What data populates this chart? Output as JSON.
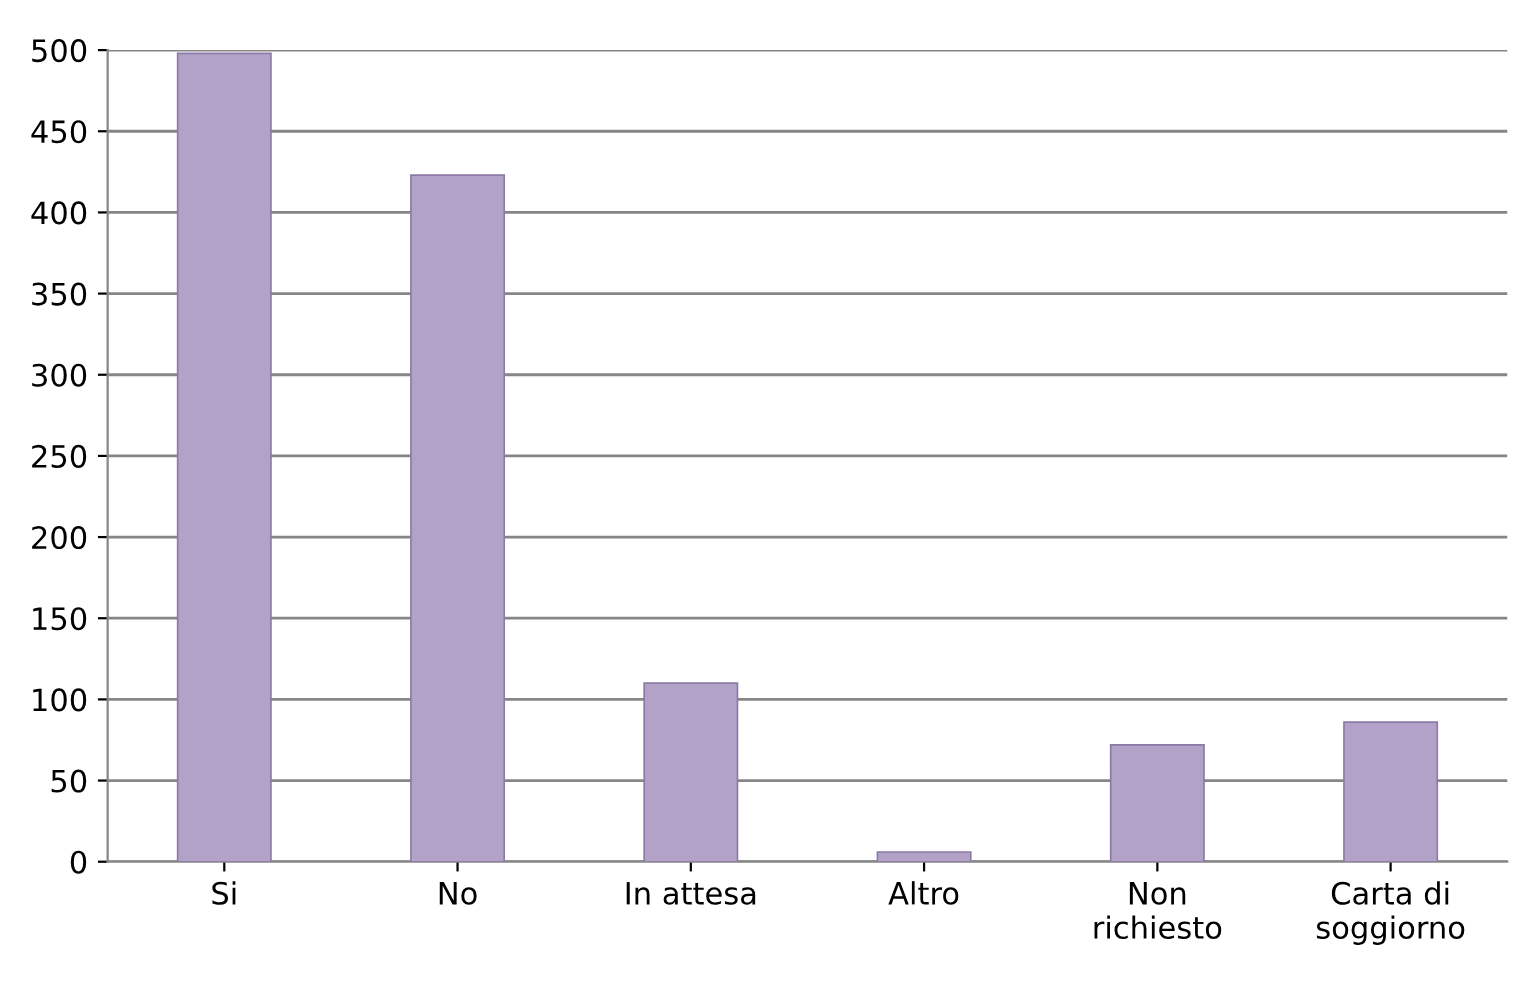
{
  "chart_data": {
    "type": "bar",
    "categories": [
      "Si",
      "No",
      "In attesa",
      "Altro",
      "Non\nrichiesto",
      "Carta di\nsoggiorno"
    ],
    "values": [
      498,
      423,
      110,
      6,
      72,
      86
    ],
    "color": "#b3a2c7",
    "ylim": [
      0,
      500
    ],
    "yticks": [
      0,
      50,
      100,
      150,
      200,
      250,
      300,
      350,
      400,
      450,
      500
    ],
    "grid": "y"
  }
}
